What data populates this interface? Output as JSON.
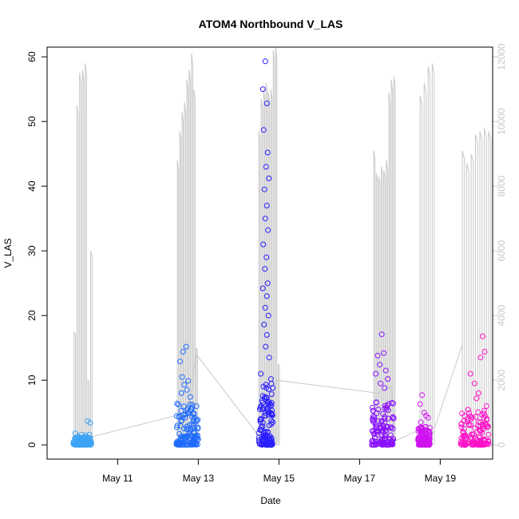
{
  "chart_data": {
    "type": "scatter",
    "title": "ATOM4 Northbound V_LAS",
    "xlabel": "Date",
    "ylabel": "V_LAS",
    "y2label": "",
    "x_ticks": [
      "May 11",
      "May 13",
      "May 15",
      "May 17",
      "May 19"
    ],
    "x_tick_days": [
      11,
      13,
      15,
      17,
      19
    ],
    "xlim_days": [
      9.25,
      20.3
    ],
    "ylim": [
      -2.2,
      61.5
    ],
    "y_ticks": [
      0,
      10,
      20,
      30,
      40,
      50,
      60
    ],
    "y2lim": [
      -440,
      12300
    ],
    "y2_ticks": [
      0,
      2000,
      4000,
      6000,
      8000,
      10000,
      12000
    ],
    "grid": false,
    "secondary_color": "#c8c8c8",
    "series": [
      {
        "color": "#3ba3f5",
        "x_range": [
          9.9,
          10.35
        ],
        "points": [
          [
            9.95,
            1.8
          ],
          [
            10.0,
            1.2
          ],
          [
            10.1,
            1.6
          ],
          [
            10.2,
            1.5
          ],
          [
            10.25,
            3.7
          ],
          [
            10.32,
            3.4
          ],
          [
            10.15,
            1.0
          ],
          [
            10.3,
            1.6
          ]
        ],
        "dense_max": 1.2
      },
      {
        "color": "#1f6bff",
        "x_range": [
          12.45,
          13.0
        ],
        "points": [
          [
            12.55,
            12.9
          ],
          [
            12.62,
            14.4
          ],
          [
            12.7,
            15.2
          ],
          [
            12.6,
            10.5
          ],
          [
            12.65,
            9.3
          ],
          [
            12.75,
            9.9
          ],
          [
            12.58,
            8.0
          ],
          [
            12.72,
            8.5
          ],
          [
            12.8,
            7.4
          ],
          [
            12.85,
            6.2
          ],
          [
            12.9,
            4.8
          ],
          [
            12.95,
            3.6
          ]
        ],
        "dense_max": 6.5
      },
      {
        "color": "#2a1fff",
        "x_range": [
          14.5,
          14.85
        ],
        "points": [
          [
            14.66,
            59.3
          ],
          [
            14.6,
            55.0
          ],
          [
            14.7,
            52.8
          ],
          [
            14.62,
            48.7
          ],
          [
            14.72,
            45.2
          ],
          [
            14.68,
            43.0
          ],
          [
            14.75,
            41.2
          ],
          [
            14.64,
            39.5
          ],
          [
            14.7,
            37.0
          ],
          [
            14.66,
            35.0
          ],
          [
            14.73,
            33.2
          ],
          [
            14.61,
            31.0
          ],
          [
            14.69,
            29.0
          ],
          [
            14.65,
            27.2
          ],
          [
            14.72,
            25.0
          ],
          [
            14.6,
            24.2
          ],
          [
            14.7,
            23.0
          ],
          [
            14.66,
            21.2
          ],
          [
            14.74,
            20.0
          ],
          [
            14.63,
            18.6
          ],
          [
            14.7,
            17.0
          ],
          [
            14.67,
            15.2
          ],
          [
            14.8,
            10.2
          ],
          [
            14.55,
            11.0
          ],
          [
            14.76,
            13.5
          ]
        ],
        "dense_max": 9.5
      },
      {
        "color": "#8a12ff",
        "x_range": [
          17.3,
          17.85
        ],
        "points": [
          [
            17.55,
            17.1
          ],
          [
            17.45,
            13.8
          ],
          [
            17.6,
            14.2
          ],
          [
            17.5,
            12.4
          ],
          [
            17.65,
            11.5
          ],
          [
            17.4,
            11.0
          ],
          [
            17.7,
            10.2
          ],
          [
            17.52,
            9.5
          ],
          [
            17.62,
            8.8
          ],
          [
            17.8,
            6.5
          ]
        ],
        "dense_max": 7.0
      },
      {
        "color": "#cf12ef",
        "x_range": [
          18.45,
          18.75
        ],
        "points": [
          [
            18.55,
            7.7
          ],
          [
            18.5,
            6.3
          ],
          [
            18.6,
            5.0
          ],
          [
            18.65,
            4.5
          ],
          [
            18.7,
            4.2
          ],
          [
            18.52,
            3.5
          ]
        ],
        "dense_max": 3.0
      },
      {
        "color": "#ff12c8",
        "x_range": [
          19.5,
          20.2
        ],
        "points": [
          [
            20.05,
            16.8
          ],
          [
            20.1,
            14.4
          ],
          [
            20.0,
            13.5
          ],
          [
            19.75,
            11.0
          ],
          [
            19.85,
            9.5
          ],
          [
            19.95,
            8.0
          ],
          [
            19.9,
            7.2
          ],
          [
            20.15,
            6.0
          ],
          [
            19.6,
            4.5
          ],
          [
            19.7,
            4.0
          ]
        ],
        "dense_max": 5.5
      }
    ],
    "secondary_series": {
      "name": "",
      "bursts": [
        {
          "x_range": [
            9.92,
            10.33
          ],
          "peaks": [
            3500,
            10500,
            11500,
            11600,
            11800,
            2000,
            6000
          ]
        },
        {
          "x_range": [
            12.48,
            12.95
          ],
          "peaks": [
            8800,
            9700,
            10300,
            10600,
            11300,
            11600,
            12100,
            11000,
            3000
          ]
        },
        {
          "x_range": [
            14.5,
            14.98
          ],
          "peaks": [
            9700,
            10700,
            11000,
            11200,
            10900,
            11000,
            12200,
            12300,
            2500
          ]
        },
        {
          "x_range": [
            17.35,
            17.85
          ],
          "peaks": [
            9100,
            8400,
            8300,
            8600,
            8500,
            8800,
            10900,
            11300,
            11400
          ]
        },
        {
          "x_range": [
            18.5,
            18.8
          ],
          "peaks": [
            10800,
            11200,
            11700,
            11800
          ]
        },
        {
          "x_range": [
            19.55,
            20.2
          ],
          "peaks": [
            9100,
            8700,
            9000,
            9600,
            9700,
            9800,
            9700
          ]
        }
      ],
      "connector": [
        [
          10.35,
          250
        ],
        [
          12.75,
          1000
        ],
        [
          12.95,
          2800
        ],
        [
          14.55,
          200
        ],
        [
          14.95,
          2000
        ],
        [
          17.45,
          1600
        ],
        [
          17.8,
          1800
        ],
        [
          17.85,
          100
        ],
        [
          18.55,
          500
        ],
        [
          18.8,
          300
        ],
        [
          19.55,
          3100
        ]
      ]
    }
  }
}
